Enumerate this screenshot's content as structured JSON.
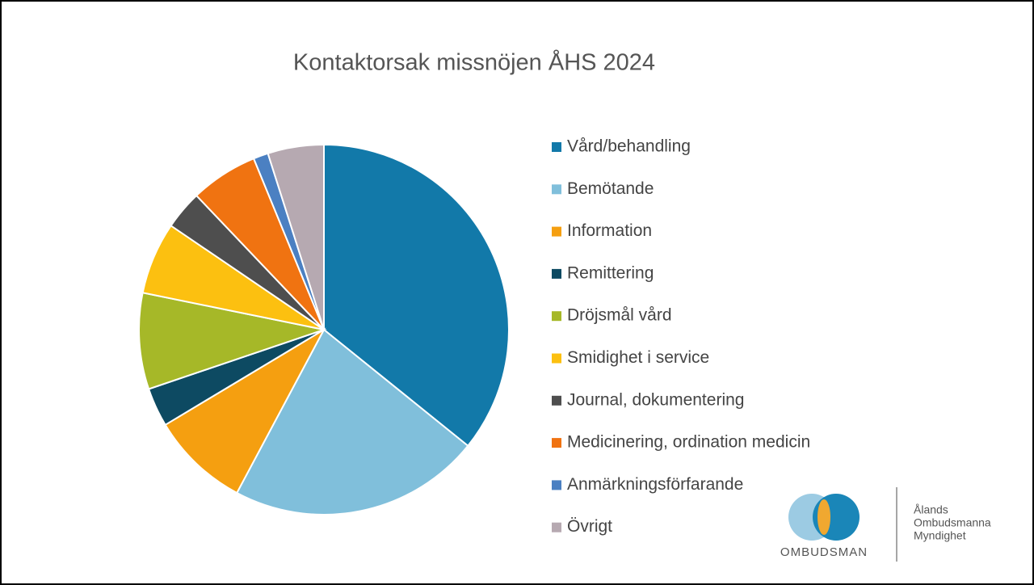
{
  "chart_data": {
    "type": "pie",
    "title": "Kontaktorsak missnöjen ÅHS 2024",
    "categories": [
      "Vård/behandling",
      "Bemötande",
      "Information",
      "Remittering",
      "Dröjsmål vård",
      "Smidighet i service",
      "Journal, dokumentering",
      "Medicinering, ordination medicin",
      "Anmärkningsförfarande",
      "Övrigt"
    ],
    "values": [
      35.8,
      22,
      8.6,
      3.4,
      8.4,
      6.3,
      3.4,
      5.9,
      1.3,
      4.9
    ],
    "colors": [
      "#1279a9",
      "#80bfdb",
      "#f59f10",
      "#0d4a62",
      "#a6b828",
      "#fcc010",
      "#4e4e4e",
      "#f07311",
      "#4b80c2",
      "#b6a9b1"
    ],
    "legend": "right"
  },
  "logo": {
    "brand": "OMBUDSMAN",
    "lines": [
      "Ålands",
      "Ombudsmanna",
      "Myndighet"
    ]
  }
}
